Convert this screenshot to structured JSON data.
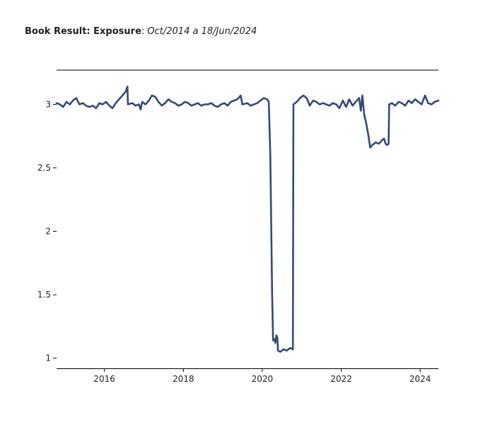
{
  "title": {
    "bold": "Book Result: Exposure",
    "separator": ": ",
    "range": "Oct/2014 a 18/Jun/2024"
  },
  "colors": {
    "line": "#34497a",
    "axis": "#000000"
  },
  "chart_data": {
    "type": "line",
    "title": "Book Result: Exposure: Oct/2014 a 18/Jun/2024",
    "xlabel": "",
    "ylabel": "",
    "xlim": [
      "2014-10-15",
      "2024-06-18"
    ],
    "ylim": [
      0.92,
      3.27
    ],
    "grid": false,
    "x_ticks": [
      "2016",
      "2018",
      "2020",
      "2022",
      "2024"
    ],
    "y_ticks": [
      "1",
      "1.5",
      "2",
      "2.5",
      "3"
    ],
    "series": [
      {
        "values": [
          [
            "2014-10-15",
            3.01
          ],
          [
            "2014-11-15",
            3.0
          ],
          [
            "2014-12-15",
            2.98
          ],
          [
            "2015-01-15",
            3.02
          ],
          [
            "2015-02-15",
            3.0
          ],
          [
            "2015-03-15",
            3.03
          ],
          [
            "2015-04-15",
            3.05
          ],
          [
            "2015-05-15",
            3.0
          ],
          [
            "2015-06-15",
            3.01
          ],
          [
            "2015-07-15",
            2.99
          ],
          [
            "2015-08-15",
            2.98
          ],
          [
            "2015-09-15",
            2.99
          ],
          [
            "2015-10-15",
            2.97
          ],
          [
            "2015-11-15",
            3.01
          ],
          [
            "2015-12-15",
            3.0
          ],
          [
            "2016-01-15",
            3.02
          ],
          [
            "2016-02-15",
            2.99
          ],
          [
            "2016-03-15",
            2.97
          ],
          [
            "2016-04-15",
            3.01
          ],
          [
            "2016-05-15",
            3.04
          ],
          [
            "2016-06-15",
            3.07
          ],
          [
            "2016-07-15",
            3.1
          ],
          [
            "2016-08-01",
            3.14
          ],
          [
            "2016-08-05",
            3.0
          ],
          [
            "2016-09-15",
            3.01
          ],
          [
            "2016-10-15",
            2.99
          ],
          [
            "2016-11-15",
            3.0
          ],
          [
            "2016-12-01",
            2.96
          ],
          [
            "2016-12-15",
            3.02
          ],
          [
            "2017-01-15",
            3.0
          ],
          [
            "2017-02-15",
            3.03
          ],
          [
            "2017-03-15",
            3.07
          ],
          [
            "2017-04-15",
            3.06
          ],
          [
            "2017-05-15",
            3.02
          ],
          [
            "2017-06-15",
            2.99
          ],
          [
            "2017-07-15",
            3.01
          ],
          [
            "2017-08-15",
            3.04
          ],
          [
            "2017-09-15",
            3.02
          ],
          [
            "2017-10-15",
            3.01
          ],
          [
            "2017-11-15",
            2.99
          ],
          [
            "2017-12-15",
            3.0
          ],
          [
            "2018-01-15",
            3.02
          ],
          [
            "2018-02-15",
            3.01
          ],
          [
            "2018-03-15",
            2.99
          ],
          [
            "2018-04-15",
            3.0
          ],
          [
            "2018-05-15",
            3.01
          ],
          [
            "2018-06-15",
            2.99
          ],
          [
            "2018-07-15",
            3.0
          ],
          [
            "2018-08-15",
            3.0
          ],
          [
            "2018-09-15",
            3.01
          ],
          [
            "2018-10-15",
            2.99
          ],
          [
            "2018-11-15",
            2.98
          ],
          [
            "2018-12-15",
            3.0
          ],
          [
            "2019-01-15",
            3.01
          ],
          [
            "2019-02-15",
            2.99
          ],
          [
            "2019-03-15",
            3.02
          ],
          [
            "2019-04-15",
            3.03
          ],
          [
            "2019-05-15",
            3.04
          ],
          [
            "2019-06-15",
            3.07
          ],
          [
            "2019-07-01",
            3.0
          ],
          [
            "2019-08-15",
            3.01
          ],
          [
            "2019-09-15",
            2.99
          ],
          [
            "2019-10-15",
            3.0
          ],
          [
            "2019-11-15",
            3.01
          ],
          [
            "2019-12-15",
            3.03
          ],
          [
            "2020-01-15",
            3.05
          ],
          [
            "2020-02-15",
            3.04
          ],
          [
            "2020-03-01",
            3.02
          ],
          [
            "2020-03-15",
            2.6
          ],
          [
            "2020-04-01",
            1.5
          ],
          [
            "2020-04-10",
            1.14
          ],
          [
            "2020-04-20",
            1.15
          ],
          [
            "2020-05-01",
            1.12
          ],
          [
            "2020-05-10",
            1.18
          ],
          [
            "2020-05-20",
            1.16
          ],
          [
            "2020-05-25",
            1.06
          ],
          [
            "2020-06-15",
            1.05
          ],
          [
            "2020-07-15",
            1.07
          ],
          [
            "2020-08-15",
            1.06
          ],
          [
            "2020-09-15",
            1.08
          ],
          [
            "2020-10-10",
            1.07
          ],
          [
            "2020-10-15",
            3.0
          ],
          [
            "2020-11-15",
            3.02
          ],
          [
            "2020-12-15",
            3.05
          ],
          [
            "2021-01-15",
            3.07
          ],
          [
            "2021-02-15",
            3.05
          ],
          [
            "2021-03-15",
            2.99
          ],
          [
            "2021-04-15",
            3.03
          ],
          [
            "2021-05-15",
            3.02
          ],
          [
            "2021-06-15",
            3.0
          ],
          [
            "2021-07-15",
            3.01
          ],
          [
            "2021-08-15",
            3.0
          ],
          [
            "2021-09-15",
            2.99
          ],
          [
            "2021-10-15",
            3.01
          ],
          [
            "2021-11-15",
            3.0
          ],
          [
            "2021-12-15",
            2.97
          ],
          [
            "2022-01-15",
            3.03
          ],
          [
            "2022-02-15",
            2.98
          ],
          [
            "2022-03-15",
            3.04
          ],
          [
            "2022-04-15",
            2.99
          ],
          [
            "2022-05-15",
            3.02
          ],
          [
            "2022-06-15",
            3.05
          ],
          [
            "2022-07-01",
            2.95
          ],
          [
            "2022-07-15",
            3.07
          ],
          [
            "2022-08-01",
            2.92
          ],
          [
            "2022-08-20",
            2.85
          ],
          [
            "2022-09-10",
            2.75
          ],
          [
            "2022-09-25",
            2.66
          ],
          [
            "2022-10-15",
            2.68
          ],
          [
            "2022-11-15",
            2.7
          ],
          [
            "2022-12-15",
            2.69
          ],
          [
            "2023-01-15",
            2.72
          ],
          [
            "2023-02-01",
            2.73
          ],
          [
            "2023-02-15",
            2.69
          ],
          [
            "2023-03-01",
            2.68
          ],
          [
            "2023-03-15",
            2.69
          ],
          [
            "2023-03-20",
            3.0
          ],
          [
            "2023-04-15",
            3.01
          ],
          [
            "2023-05-15",
            2.99
          ],
          [
            "2023-06-15",
            3.02
          ],
          [
            "2023-07-15",
            3.01
          ],
          [
            "2023-08-15",
            2.99
          ],
          [
            "2023-09-15",
            3.03
          ],
          [
            "2023-10-15",
            3.01
          ],
          [
            "2023-11-15",
            3.04
          ],
          [
            "2023-12-15",
            3.02
          ],
          [
            "2024-01-15",
            3.0
          ],
          [
            "2024-02-15",
            3.07
          ],
          [
            "2024-03-15",
            3.01
          ],
          [
            "2024-04-15",
            3.0
          ],
          [
            "2024-05-15",
            3.02
          ],
          [
            "2024-06-18",
            3.03
          ]
        ]
      }
    ]
  }
}
